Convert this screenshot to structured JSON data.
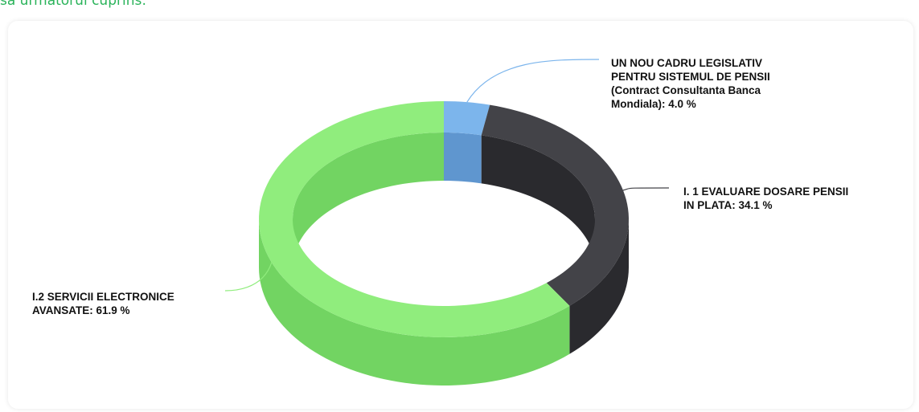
{
  "header": {
    "text": "sa urmatorul cuprins:"
  },
  "chart_data": {
    "type": "pie",
    "variant": "3d-donut",
    "slices": [
      {
        "label": "UN NOU CADRU LEGISLATIV\nPENTRU SISTEMUL DE PENSII\n(Contract Consultanta Banca\nMondiala): 4.0 %",
        "value": 4.0,
        "color": "#7cb5ec",
        "side": "#5f96cf"
      },
      {
        "label": "I. 1 EVALUARE DOSARE PENSII\nIN PLATA: 34.1 %",
        "value": 34.1,
        "color": "#434348",
        "side": "#2a2a2e"
      },
      {
        "label": "I.2 SERVICII ELECTRONICE\nAVANSATE: 61.9 %",
        "value": 61.9,
        "color": "#90ed7d",
        "side": "#72d462"
      }
    ]
  }
}
